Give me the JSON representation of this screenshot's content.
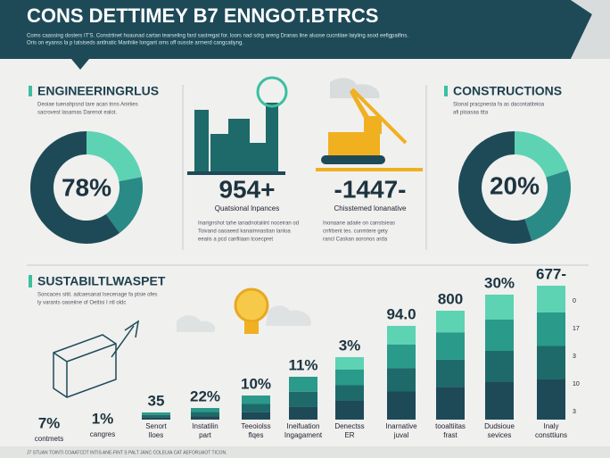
{
  "header": {
    "title": "CONS DETTIMEY B7 ENNGOT.BTRCS",
    "subtitle": [
      "Coms caassing dosters IT'S. Constrtinet hoaunad cartan tearseling fard sastregat for. loors nad sdrg areng Dranas line aluose cucntiiae laiyling asod eefigpaifins.",
      "Oris on eyanss la p tatsiseds antlnatic Manhiiie longant oms off ousste arrnerd cangcatiyng."
    ]
  },
  "engineering": {
    "title": "ENGINEERINGRLUS",
    "description": [
      "Deoiae tuenahpsnd tare acan tnns Aniriies",
      "sacrovest lasamas Darenot ealot."
    ],
    "percent": "78%"
  },
  "middle": {
    "stats": [
      {
        "value": "954+",
        "label": "Quatsional lnpances",
        "notes": [
          "Inarignshot tahe ianadnotaiiint noceiran od",
          "Toivand oaoaeed kanaimnastian lanloa",
          "eeaiis a pcd canfiiaan tcoecpret"
        ]
      },
      {
        "value": "-1447-",
        "label": "Chisstemed lonanative",
        "notes": [
          "Inonaane adaiie on canstsieas",
          "cnfrbent tes. cunmtere gety",
          "rancl Caskan aoronos arda"
        ]
      }
    ]
  },
  "constructions": {
    "title": "CONSTRUCTIONS",
    "description": [
      "Stonal pracpnesta fa as dacontatiteioa",
      "afi ploasaa ttta"
    ],
    "percent": "20%"
  },
  "sustainability": {
    "title": "SUSTABILTLWASPET",
    "description": [
      "Soncaces sitit. adcaesanat lsecenage fa ptsie ofes",
      "ly varants oaoeiine of Oettisi I ntl oldc"
    ],
    "items": [
      {
        "value": "7%",
        "label": [
          "contmets"
        ]
      },
      {
        "value": "1%",
        "label": [
          "cangres"
        ]
      },
      {
        "value": "35",
        "label": [
          "Senort",
          "lloes"
        ]
      },
      {
        "value": "22%",
        "label": [
          "Instatilin",
          "part"
        ]
      },
      {
        "value": "10%",
        "label": [
          "Teeoiolss",
          "flqes"
        ]
      },
      {
        "value": "11%",
        "label": [
          "Ineifuation",
          "Ingagament"
        ]
      },
      {
        "value": "3%",
        "label": [
          "Denectss",
          "ER"
        ]
      },
      {
        "value": "94.0",
        "label": [
          "Inarnative",
          "juval"
        ]
      },
      {
        "value": "800",
        "label": [
          "tooaltiitas",
          "frast"
        ]
      },
      {
        "value": "30%",
        "label": [
          "Dudsioue",
          "sevices"
        ]
      },
      {
        "value": "677-",
        "label": [
          "Inaly",
          "consttiuns"
        ]
      }
    ],
    "scale": [
      "0",
      "17",
      "3",
      "10",
      "3"
    ]
  },
  "footer": "J7 STUAN TOINTI COAATCDT INTIS ANE-FINT S PALT JANC COLEUIA CAT AEFORUAOT TICON."
}
